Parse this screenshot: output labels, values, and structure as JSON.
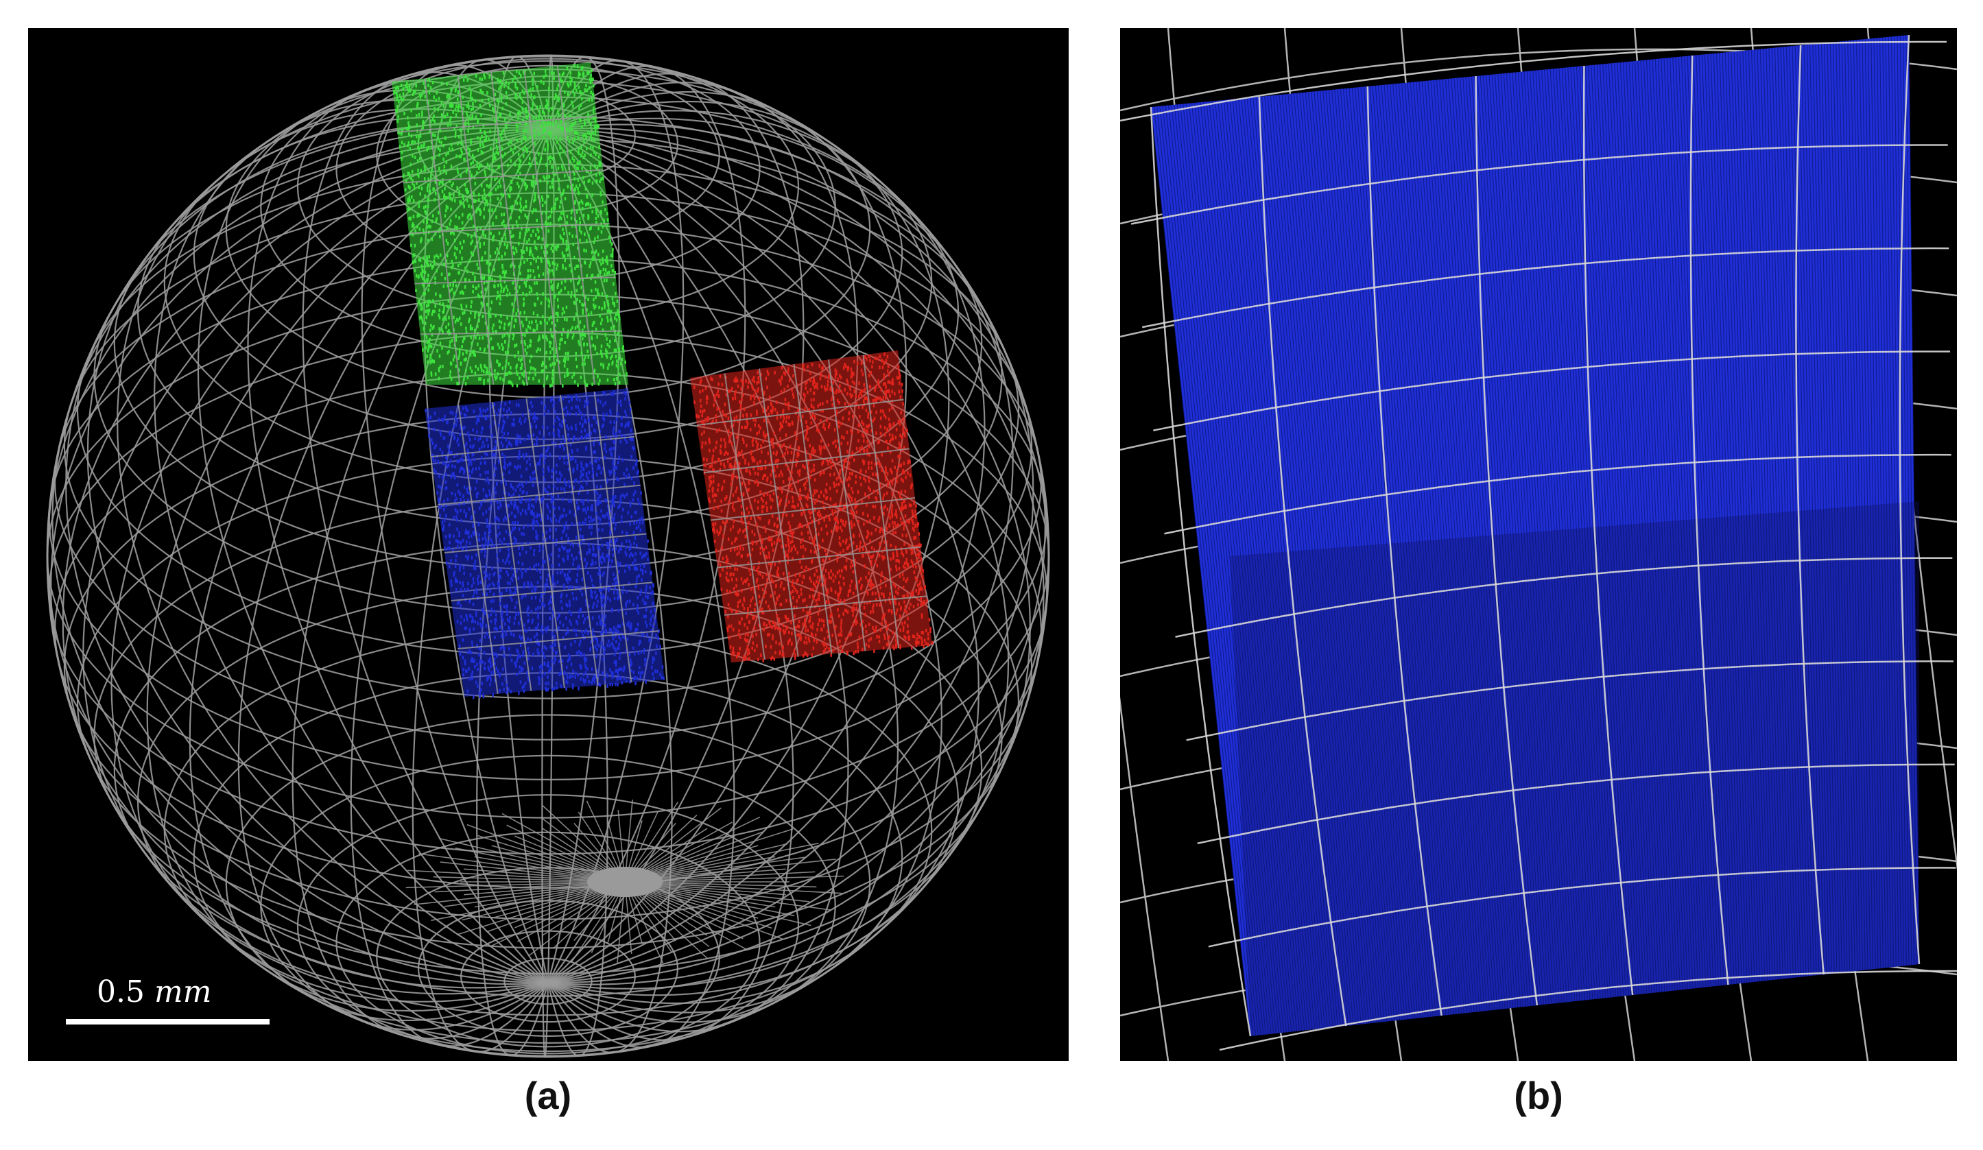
{
  "figure": {
    "panels": [
      {
        "id": "a",
        "caption": "(a)"
      },
      {
        "id": "b",
        "caption": "(b)"
      }
    ],
    "scale_bar": {
      "value": "0.5",
      "unit": "mm"
    },
    "colors": {
      "background": "#000000",
      "wireframe": "#9a9a9a",
      "cube_green": "#3ee23e",
      "cube_blue": "#1f2fd8",
      "cube_red": "#e0241c"
    }
  }
}
